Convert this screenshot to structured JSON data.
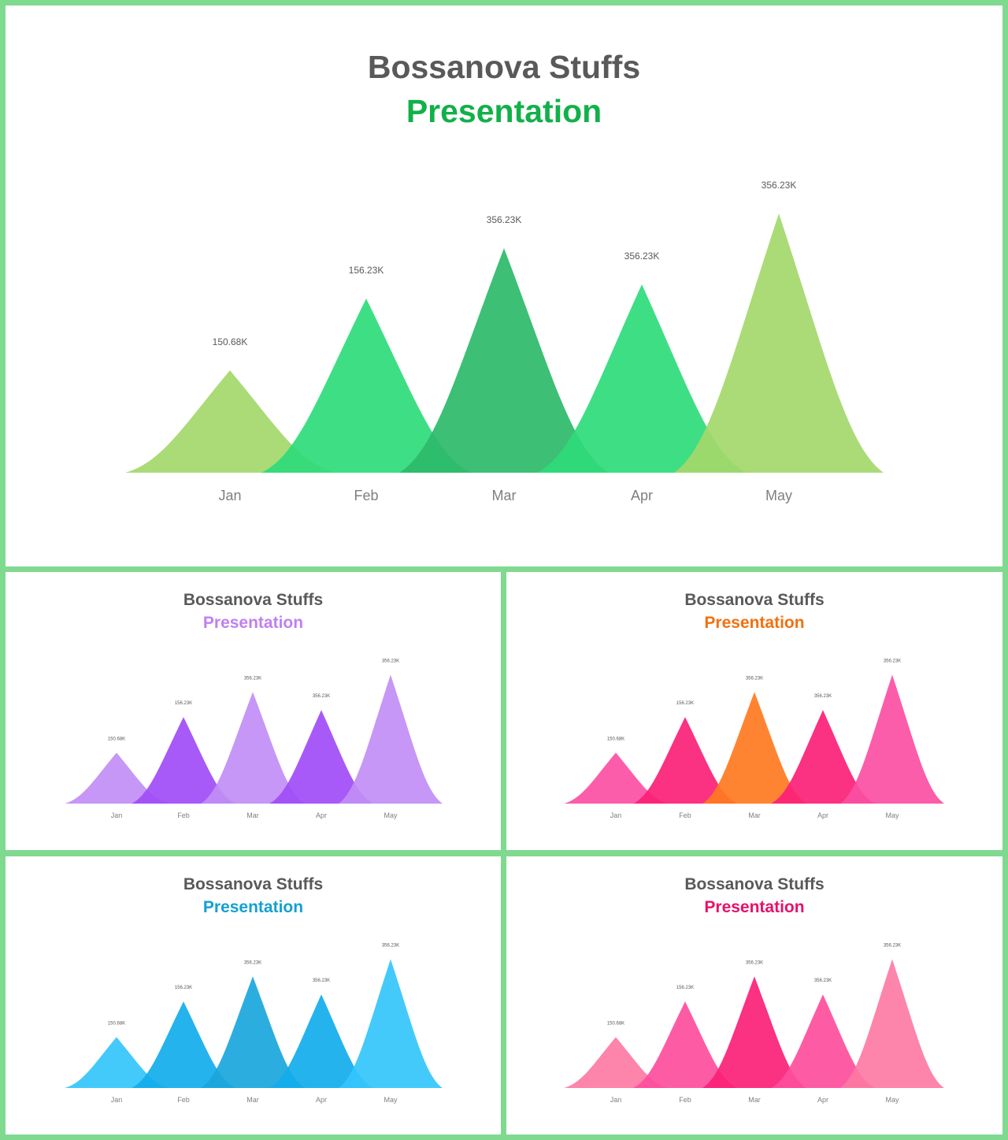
{
  "charts": [
    {
      "id": "main-chart",
      "title": "Bossanova Stuffs",
      "subtitle": "Presentation",
      "subtitle_color": "#12b04a",
      "colors": [
        "#a3d86b",
        "#2edb7b",
        "#2dba6a",
        "#2edb7b",
        "#a3d86b"
      ],
      "chart_data": {
        "type": "area",
        "categories": [
          "Jan",
          "Feb",
          "Mar",
          "Apr",
          "May"
        ],
        "values": [
          150.68,
          156.23,
          356.23,
          356.23,
          356.23
        ],
        "data_labels": [
          "150.68K",
          "156.23K",
          "356.23K",
          "356.23K",
          "356.23K"
        ],
        "grid": false,
        "legend": "none"
      }
    },
    {
      "id": "purple-chart",
      "title": "Bossanova Stuffs",
      "subtitle": "Presentation",
      "subtitle_color": "#c17ff0",
      "colors": [
        "#c18ef5",
        "#a04cf7",
        "#c18ef5",
        "#a04cf7",
        "#c18ef5"
      ],
      "chart_data": {
        "type": "area",
        "categories": [
          "Jan",
          "Feb",
          "Mar",
          "Apr",
          "May"
        ],
        "values": [
          150.68,
          156.23,
          356.23,
          356.23,
          356.23
        ],
        "data_labels": [
          "150.68K",
          "156.23K",
          "356.23K",
          "356.23K",
          "356.23K"
        ],
        "grid": false,
        "legend": "none"
      }
    },
    {
      "id": "orange-chart",
      "title": "Bossanova Stuffs",
      "subtitle": "Presentation",
      "subtitle_color": "#f2700f",
      "colors": [
        "#fb4fa3",
        "#fb1f77",
        "#ff7a21",
        "#fb1f77",
        "#fb4fa3"
      ],
      "chart_data": {
        "type": "area",
        "categories": [
          "Jan",
          "Feb",
          "Mar",
          "Apr",
          "May"
        ],
        "values": [
          150.68,
          156.23,
          356.23,
          356.23,
          356.23
        ],
        "data_labels": [
          "150.68K",
          "156.23K",
          "356.23K",
          "356.23K",
          "356.23K"
        ],
        "grid": false,
        "legend": "none"
      }
    },
    {
      "id": "blue-chart",
      "title": "Bossanova Stuffs",
      "subtitle": "Presentation",
      "subtitle_color": "#14a0d2",
      "colors": [
        "#33c5fb",
        "#12adeb",
        "#1aa6dc",
        "#12adeb",
        "#33c5fb"
      ],
      "chart_data": {
        "type": "area",
        "categories": [
          "Jan",
          "Feb",
          "Mar",
          "Apr",
          "May"
        ],
        "values": [
          150.68,
          156.23,
          356.23,
          356.23,
          356.23
        ],
        "data_labels": [
          "150.68K",
          "156.23K",
          "356.23K",
          "356.23K",
          "356.23K"
        ],
        "grid": false,
        "legend": "none"
      }
    },
    {
      "id": "pink-chart",
      "title": "Bossanova Stuffs",
      "subtitle": "Presentation",
      "subtitle_color": "#e8106b",
      "colors": [
        "#fd79a3",
        "#fd4e9c",
        "#fb1f77",
        "#fd4e9c",
        "#fd79a3"
      ],
      "chart_data": {
        "type": "area",
        "categories": [
          "Jan",
          "Feb",
          "Mar",
          "Apr",
          "May"
        ],
        "values": [
          150.68,
          156.23,
          356.23,
          356.23,
          356.23
        ],
        "data_labels": [
          "150.68K",
          "156.23K",
          "356.23K",
          "356.23K",
          "356.23K"
        ],
        "grid": false,
        "legend": "none"
      }
    }
  ]
}
